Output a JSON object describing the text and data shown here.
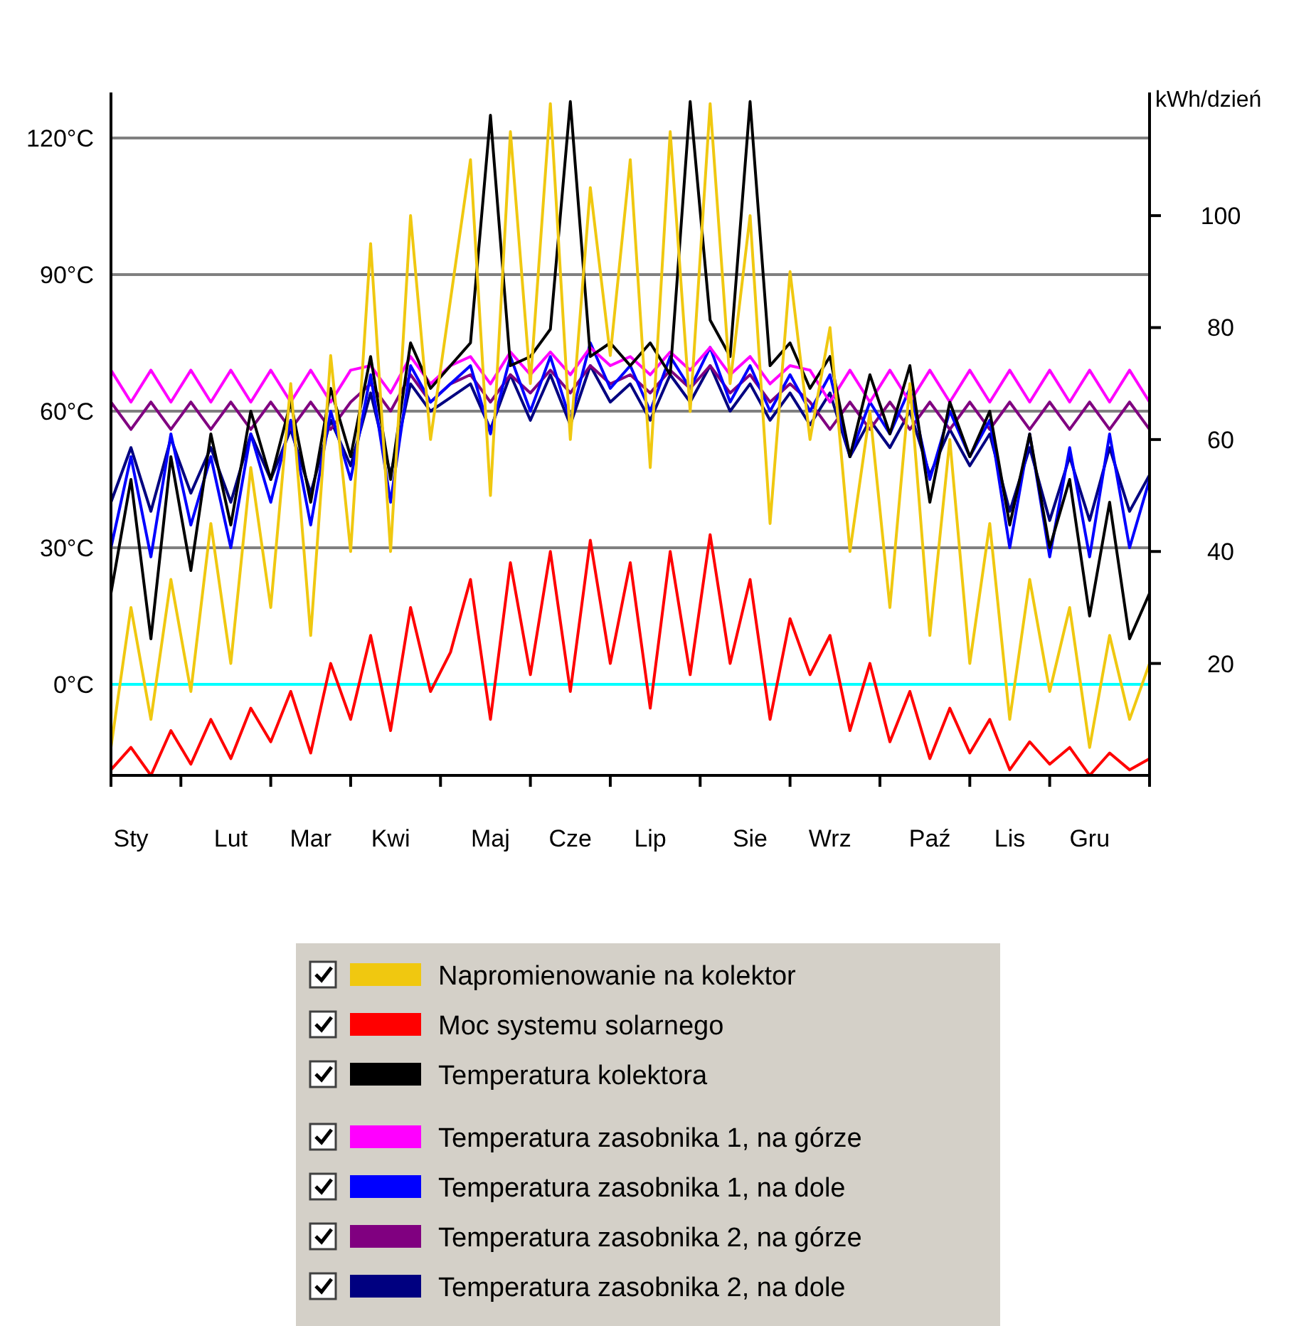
{
  "chart_data": {
    "type": "line",
    "y2label": "kWh/dzień",
    "categories": [
      null,
      "Sty",
      null,
      null,
      null,
      null,
      "Lut",
      null,
      null,
      null,
      "Mar",
      null,
      null,
      null,
      "Kwi",
      null,
      null,
      null,
      null,
      "Maj",
      null,
      null,
      null,
      "Cze",
      null,
      null,
      null,
      "Lip",
      null,
      null,
      null,
      null,
      "Sie",
      null,
      null,
      null,
      "Wrz",
      null,
      null,
      null,
      null,
      "Paź",
      null,
      null,
      null,
      "Lis",
      null,
      null,
      null,
      "Gru",
      null,
      null,
      null
    ],
    "ylim": [
      -20,
      130
    ],
    "yticks": [
      {
        "value": 0,
        "label": "0°C"
      },
      {
        "value": 30,
        "label": "30°C"
      },
      {
        "value": 60,
        "label": "60°C"
      },
      {
        "value": 90,
        "label": "90°C"
      },
      {
        "value": 120,
        "label": "120°C"
      }
    ],
    "y2lim": [
      0,
      122
    ],
    "y2ticks": [
      20,
      40,
      60,
      80,
      100
    ],
    "grid": "y",
    "legend": "bottom",
    "marker": "none",
    "line_style": "solid",
    "ref_lines": [
      {
        "axis": "y",
        "value": 0,
        "color": "#00ffff"
      }
    ],
    "series": [
      {
        "name": "Napromienowanie na kolektor",
        "color": "#f0c810",
        "axis": "y2",
        "values": [
          5,
          30,
          10,
          35,
          15,
          45,
          20,
          55,
          30,
          70,
          25,
          75,
          40,
          95,
          40,
          100,
          60,
          85,
          110,
          50,
          115,
          70,
          120,
          60,
          105,
          75,
          110,
          55,
          115,
          65,
          120,
          70,
          100,
          45,
          90,
          60,
          80,
          40,
          65,
          30,
          70,
          25,
          60,
          20,
          45,
          10,
          35,
          15,
          30,
          5,
          25,
          10,
          20
        ]
      },
      {
        "name": "Moc systemu solarnego",
        "color": "#ff0000",
        "axis": "y2",
        "values": [
          1,
          5,
          0,
          8,
          2,
          10,
          3,
          12,
          6,
          15,
          4,
          20,
          10,
          25,
          8,
          30,
          15,
          22,
          35,
          10,
          38,
          18,
          40,
          15,
          42,
          20,
          38,
          12,
          40,
          18,
          43,
          20,
          35,
          10,
          28,
          18,
          25,
          8,
          20,
          6,
          15,
          3,
          12,
          4,
          10,
          1,
          6,
          2,
          5,
          0,
          4,
          1,
          3
        ]
      },
      {
        "name": "Temperatura kolektora",
        "color": "#000000",
        "values": [
          20,
          45,
          10,
          50,
          25,
          55,
          35,
          60,
          45,
          62,
          40,
          65,
          50,
          72,
          45,
          75,
          65,
          70,
          75,
          125,
          70,
          72,
          78,
          128,
          72,
          75,
          70,
          75,
          68,
          128,
          80,
          72,
          128,
          70,
          75,
          65,
          72,
          50,
          68,
          55,
          70,
          40,
          62,
          50,
          60,
          35,
          55,
          30,
          45,
          15,
          40,
          10,
          20
        ]
      },
      {
        "name": "Temperatura zasobnika 1, na górze",
        "color": "#ff00ff",
        "values": [
          69,
          62,
          69,
          62,
          69,
          62,
          69,
          62,
          69,
          62,
          69,
          62,
          69,
          70,
          64,
          72,
          66,
          70,
          72,
          66,
          73,
          68,
          73,
          68,
          74,
          70,
          72,
          68,
          73,
          69,
          74,
          68,
          72,
          66,
          70,
          69,
          62,
          69,
          62,
          69,
          62,
          69,
          62,
          69,
          62,
          69,
          62,
          69,
          62,
          69,
          62,
          69,
          62
        ]
      },
      {
        "name": "Temperatura zasobnika 1, na dole",
        "color": "#0000ff",
        "values": [
          30,
          50,
          28,
          55,
          35,
          50,
          30,
          55,
          40,
          58,
          35,
          60,
          45,
          68,
          40,
          70,
          62,
          66,
          70,
          55,
          72,
          60,
          72,
          58,
          75,
          65,
          70,
          60,
          72,
          65,
          74,
          62,
          70,
          60,
          68,
          60,
          68,
          50,
          62,
          55,
          65,
          45,
          60,
          50,
          58,
          30,
          55,
          28,
          52,
          28,
          55,
          30,
          45
        ]
      },
      {
        "name": "Temperatura zasobnika 2, na górze",
        "color": "#800080",
        "values": [
          62,
          56,
          62,
          56,
          62,
          56,
          62,
          56,
          62,
          56,
          62,
          56,
          62,
          66,
          60,
          68,
          62,
          66,
          68,
          62,
          68,
          64,
          69,
          64,
          70,
          66,
          68,
          64,
          69,
          65,
          70,
          64,
          68,
          62,
          66,
          62,
          56,
          62,
          56,
          62,
          56,
          62,
          56,
          62,
          56,
          62,
          56,
          62,
          56,
          62,
          56,
          62,
          56
        ]
      },
      {
        "name": "Temperatura zasobnika 2, na dole",
        "color": "#000080",
        "values": [
          40,
          52,
          38,
          54,
          42,
          52,
          40,
          55,
          45,
          56,
          42,
          58,
          48,
          64,
          46,
          66,
          60,
          63,
          66,
          56,
          68,
          58,
          68,
          57,
          70,
          62,
          66,
          58,
          68,
          62,
          70,
          60,
          66,
          58,
          64,
          57,
          64,
          50,
          58,
          52,
          60,
          46,
          56,
          48,
          55,
          38,
          52,
          36,
          50,
          36,
          52,
          38,
          46
        ]
      }
    ]
  }
}
